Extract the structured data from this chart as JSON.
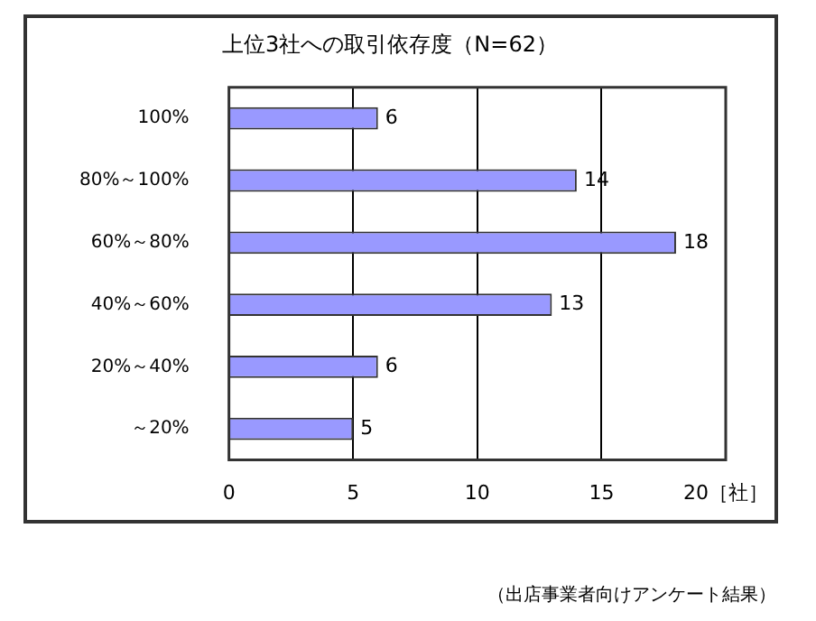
{
  "chart_data": {
    "type": "bar",
    "orientation": "horizontal",
    "title": "上位3社への取引依存度（N=62）",
    "categories": [
      "100%",
      "80%～100%",
      "60%～80%",
      "40%～60%",
      "20%～40%",
      "～20%"
    ],
    "values": [
      6,
      14,
      18,
      13,
      6,
      5
    ],
    "color": "#9999ff",
    "xlim": [
      0,
      20
    ],
    "xticks": [
      0,
      5,
      10,
      15,
      {
        "value": 20,
        "label": "20［社］"
      }
    ],
    "grid": "x",
    "data_labels": true,
    "legend": false,
    "annotations": [
      "（出店事業者向けアンケート結果）"
    ]
  }
}
